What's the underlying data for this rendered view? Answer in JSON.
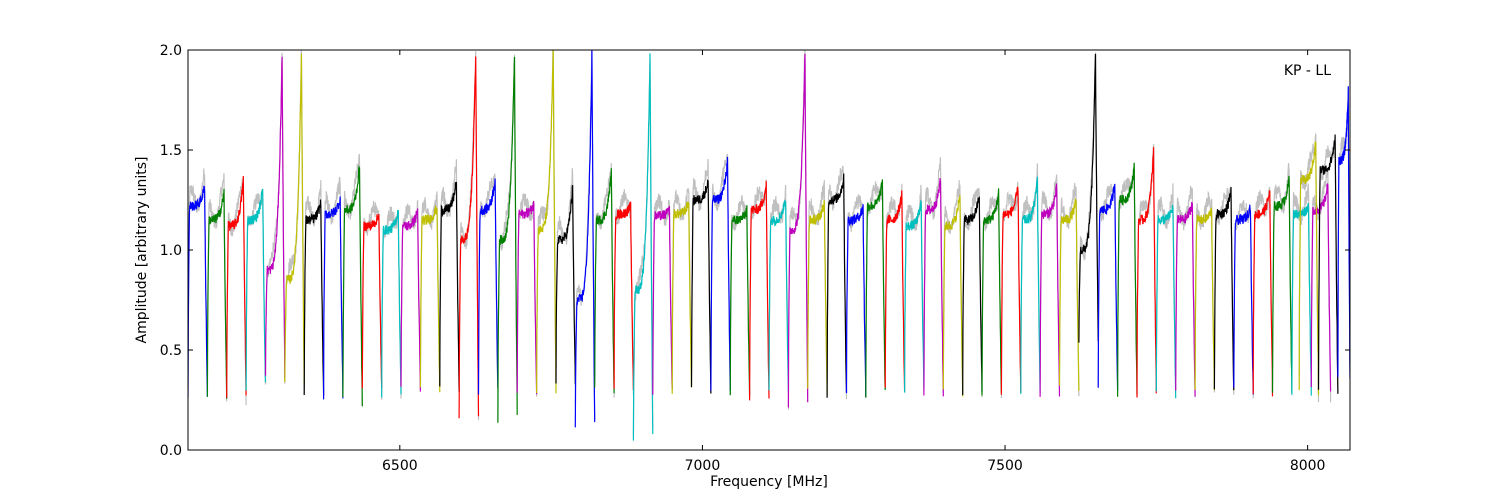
{
  "chart_data": {
    "type": "line",
    "title": "",
    "xlabel": "Frequency [MHz]",
    "ylabel": "Amplitude [arbitrary units]",
    "xlim": [
      6150,
      8070
    ],
    "ylim": [
      0.0,
      2.0
    ],
    "x_ticks": [
      6500,
      7000,
      7500,
      8000
    ],
    "y_ticks": [
      0.0,
      0.5,
      1.0,
      1.5,
      2.0
    ],
    "x_tick_labels": [
      "6500",
      "7000",
      "7500",
      "8000"
    ],
    "y_tick_labels": [
      "0.0",
      "0.5",
      "1.0",
      "1.5",
      "2.0"
    ],
    "annotation": "KP - LL",
    "grid": false,
    "background_color": "#c0c0c0",
    "channel_width_mhz": 32,
    "channel_start_mhz": 6150,
    "color_cycle": [
      "#0000ff",
      "#008000",
      "#ff0000",
      "#00bfbf",
      "#bf00bf",
      "#bfbf00",
      "#000000"
    ],
    "series": [
      {
        "color": "#0000ff",
        "x_start": 6150,
        "x_end": 6182,
        "level": 1.22,
        "peak": 1.32,
        "low": 0.28
      },
      {
        "color": "#008000",
        "x_start": 6182,
        "x_end": 6214,
        "level": 1.15,
        "peak": 1.29,
        "low": 0.25
      },
      {
        "color": "#ff0000",
        "x_start": 6214,
        "x_end": 6246,
        "level": 1.12,
        "peak": 1.36,
        "low": 0.28
      },
      {
        "color": "#00bfbf",
        "x_start": 6246,
        "x_end": 6278,
        "level": 1.15,
        "peak": 1.31,
        "low": 0.32
      },
      {
        "color": "#bf00bf",
        "x_start": 6278,
        "x_end": 6310,
        "level": 0.9,
        "peak": 2.0,
        "low": 0.35
      },
      {
        "color": "#bfbf00",
        "x_start": 6310,
        "x_end": 6342,
        "level": 0.85,
        "peak": 2.0,
        "low": 0.32
      },
      {
        "color": "#000000",
        "x_start": 6342,
        "x_end": 6374,
        "level": 1.15,
        "peak": 1.24,
        "low": 0.28
      },
      {
        "color": "#0000ff",
        "x_start": 6374,
        "x_end": 6406,
        "level": 1.18,
        "peak": 1.26,
        "low": 0.27
      },
      {
        "color": "#008000",
        "x_start": 6406,
        "x_end": 6438,
        "level": 1.2,
        "peak": 1.43,
        "low": 0.24
      },
      {
        "color": "#ff0000",
        "x_start": 6438,
        "x_end": 6470,
        "level": 1.12,
        "peak": 1.18,
        "low": 0.3
      },
      {
        "color": "#00bfbf",
        "x_start": 6470,
        "x_end": 6502,
        "level": 1.1,
        "peak": 1.2,
        "low": 0.28
      },
      {
        "color": "#bf00bf",
        "x_start": 6502,
        "x_end": 6534,
        "level": 1.12,
        "peak": 1.2,
        "low": 0.3
      },
      {
        "color": "#bfbf00",
        "x_start": 6534,
        "x_end": 6566,
        "level": 1.15,
        "peak": 1.22,
        "low": 0.3
      },
      {
        "color": "#000000",
        "x_start": 6566,
        "x_end": 6598,
        "level": 1.2,
        "peak": 1.35,
        "low": 0.3
      },
      {
        "color": "#ff0000",
        "x_start": 6598,
        "x_end": 6630,
        "level": 1.05,
        "peak": 2.0,
        "low": 0.18
      },
      {
        "color": "#0000ff",
        "x_start": 6630,
        "x_end": 6662,
        "level": 1.2,
        "peak": 1.36,
        "low": 0.3
      },
      {
        "color": "#008000",
        "x_start": 6662,
        "x_end": 6694,
        "level": 1.05,
        "peak": 2.0,
        "low": 0.16
      },
      {
        "color": "#bf00bf",
        "x_start": 6694,
        "x_end": 6726,
        "level": 1.18,
        "peak": 1.23,
        "low": 0.3
      },
      {
        "color": "#bfbf00",
        "x_start": 6726,
        "x_end": 6758,
        "level": 1.1,
        "peak": 2.0,
        "low": 0.3
      },
      {
        "color": "#000000",
        "x_start": 6758,
        "x_end": 6790,
        "level": 1.05,
        "peak": 1.32,
        "low": 0.33
      },
      {
        "color": "#0000ff",
        "x_start": 6790,
        "x_end": 6822,
        "level": 0.75,
        "peak": 2.0,
        "low": 0.12
      },
      {
        "color": "#008000",
        "x_start": 6822,
        "x_end": 6854,
        "level": 1.15,
        "peak": 1.4,
        "low": 0.3
      },
      {
        "color": "#ff0000",
        "x_start": 6854,
        "x_end": 6886,
        "level": 1.18,
        "peak": 1.22,
        "low": 0.3
      },
      {
        "color": "#00bfbf",
        "x_start": 6886,
        "x_end": 6918,
        "level": 0.8,
        "peak": 2.0,
        "low": 0.06
      },
      {
        "color": "#bf00bf",
        "x_start": 6918,
        "x_end": 6950,
        "level": 1.17,
        "peak": 1.2,
        "low": 0.3
      },
      {
        "color": "#bfbf00",
        "x_start": 6950,
        "x_end": 6982,
        "level": 1.18,
        "peak": 1.24,
        "low": 0.29
      },
      {
        "color": "#000000",
        "x_start": 6982,
        "x_end": 7014,
        "level": 1.25,
        "peak": 1.35,
        "low": 0.29
      },
      {
        "color": "#0000ff",
        "x_start": 7014,
        "x_end": 7046,
        "level": 1.25,
        "peak": 1.45,
        "low": 0.29
      },
      {
        "color": "#008000",
        "x_start": 7046,
        "x_end": 7078,
        "level": 1.15,
        "peak": 1.2,
        "low": 0.28
      },
      {
        "color": "#ff0000",
        "x_start": 7078,
        "x_end": 7110,
        "level": 1.2,
        "peak": 1.33,
        "low": 0.26
      },
      {
        "color": "#00bfbf",
        "x_start": 7110,
        "x_end": 7142,
        "level": 1.15,
        "peak": 1.26,
        "low": 0.3
      },
      {
        "color": "#bf00bf",
        "x_start": 7142,
        "x_end": 7174,
        "level": 1.1,
        "peak": 2.0,
        "low": 0.22
      },
      {
        "color": "#bfbf00",
        "x_start": 7174,
        "x_end": 7206,
        "level": 1.15,
        "peak": 1.24,
        "low": 0.29
      },
      {
        "color": "#000000",
        "x_start": 7206,
        "x_end": 7238,
        "level": 1.25,
        "peak": 1.36,
        "low": 0.27
      },
      {
        "color": "#0000ff",
        "x_start": 7238,
        "x_end": 7270,
        "level": 1.15,
        "peak": 1.22,
        "low": 0.28
      },
      {
        "color": "#008000",
        "x_start": 7270,
        "x_end": 7302,
        "level": 1.22,
        "peak": 1.34,
        "low": 0.28
      },
      {
        "color": "#ff0000",
        "x_start": 7302,
        "x_end": 7334,
        "level": 1.15,
        "peak": 1.28,
        "low": 0.29
      },
      {
        "color": "#00bfbf",
        "x_start": 7334,
        "x_end": 7366,
        "level": 1.12,
        "peak": 1.24,
        "low": 0.29
      },
      {
        "color": "#bf00bf",
        "x_start": 7366,
        "x_end": 7398,
        "level": 1.2,
        "peak": 1.36,
        "low": 0.28
      },
      {
        "color": "#bfbf00",
        "x_start": 7398,
        "x_end": 7430,
        "level": 1.12,
        "peak": 1.28,
        "low": 0.29
      },
      {
        "color": "#000000",
        "x_start": 7430,
        "x_end": 7462,
        "level": 1.15,
        "peak": 1.28,
        "low": 0.28
      },
      {
        "color": "#008000",
        "x_start": 7462,
        "x_end": 7494,
        "level": 1.15,
        "peak": 1.29,
        "low": 0.28
      },
      {
        "color": "#ff0000",
        "x_start": 7494,
        "x_end": 7526,
        "level": 1.18,
        "peak": 1.32,
        "low": 0.28
      },
      {
        "color": "#00bfbf",
        "x_start": 7526,
        "x_end": 7558,
        "level": 1.15,
        "peak": 1.36,
        "low": 0.27
      },
      {
        "color": "#bf00bf",
        "x_start": 7558,
        "x_end": 7590,
        "level": 1.18,
        "peak": 1.32,
        "low": 0.28
      },
      {
        "color": "#bfbf00",
        "x_start": 7590,
        "x_end": 7622,
        "level": 1.15,
        "peak": 1.25,
        "low": 0.3
      },
      {
        "color": "#000000",
        "x_start": 7622,
        "x_end": 7654,
        "level": 1.0,
        "peak": 2.0,
        "low": 0.53
      },
      {
        "color": "#0000ff",
        "x_start": 7654,
        "x_end": 7686,
        "level": 1.2,
        "peak": 1.33,
        "low": 0.3
      },
      {
        "color": "#008000",
        "x_start": 7686,
        "x_end": 7718,
        "level": 1.25,
        "peak": 1.42,
        "low": 0.29
      },
      {
        "color": "#ff0000",
        "x_start": 7718,
        "x_end": 7750,
        "level": 1.15,
        "peak": 1.5,
        "low": 0.28
      },
      {
        "color": "#00bfbf",
        "x_start": 7750,
        "x_end": 7782,
        "level": 1.15,
        "peak": 1.22,
        "low": 0.28
      },
      {
        "color": "#bf00bf",
        "x_start": 7782,
        "x_end": 7814,
        "level": 1.15,
        "peak": 1.24,
        "low": 0.28
      },
      {
        "color": "#bfbf00",
        "x_start": 7814,
        "x_end": 7846,
        "level": 1.15,
        "peak": 1.2,
        "low": 0.29
      },
      {
        "color": "#000000",
        "x_start": 7846,
        "x_end": 7878,
        "level": 1.18,
        "peak": 1.3,
        "low": 0.29
      },
      {
        "color": "#0000ff",
        "x_start": 7878,
        "x_end": 7910,
        "level": 1.15,
        "peak": 1.22,
        "low": 0.29
      },
      {
        "color": "#ff0000",
        "x_start": 7910,
        "x_end": 7942,
        "level": 1.18,
        "peak": 1.3,
        "low": 0.29
      },
      {
        "color": "#008000",
        "x_start": 7942,
        "x_end": 7974,
        "level": 1.22,
        "peak": 1.36,
        "low": 0.29
      },
      {
        "color": "#00bfbf",
        "x_start": 7974,
        "x_end": 8006,
        "level": 1.18,
        "peak": 1.22,
        "low": 0.29
      },
      {
        "color": "#bf00bf",
        "x_start": 8006,
        "x_end": 8038,
        "level": 1.2,
        "peak": 1.33,
        "low": 0.29
      },
      {
        "color": "#bfbf00",
        "x_start": 7986,
        "x_end": 8018,
        "level": 1.35,
        "peak": 1.55,
        "low": 0.29
      },
      {
        "color": "#000000",
        "x_start": 8018,
        "x_end": 8050,
        "level": 1.4,
        "peak": 1.57,
        "low": 0.28
      },
      {
        "color": "#0000ff",
        "x_start": 8050,
        "x_end": 8070,
        "level": 1.45,
        "peak": 1.8,
        "low": 0.35
      }
    ]
  }
}
